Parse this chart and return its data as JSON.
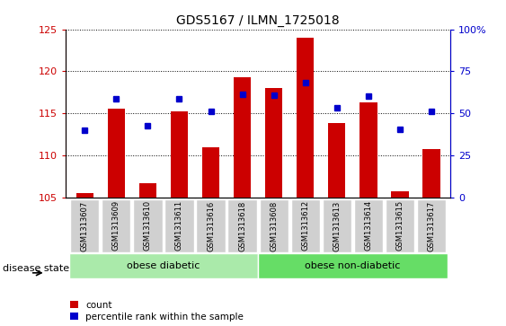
{
  "title": "GDS5167 / ILMN_1725018",
  "samples": [
    "GSM1313607",
    "GSM1313609",
    "GSM1313610",
    "GSM1313611",
    "GSM1313616",
    "GSM1313618",
    "GSM1313608",
    "GSM1313612",
    "GSM1313613",
    "GSM1313614",
    "GSM1313615",
    "GSM1313617"
  ],
  "count_values": [
    105.5,
    115.5,
    106.7,
    115.2,
    111.0,
    119.3,
    118.0,
    124.0,
    113.8,
    116.3,
    105.7,
    110.7
  ],
  "percentile_values": [
    113.0,
    116.7,
    113.5,
    116.7,
    115.2,
    117.3,
    117.2,
    118.7,
    115.7,
    117.0,
    113.1,
    115.2
  ],
  "y_min": 105,
  "y_max": 125,
  "y_ticks": [
    105,
    110,
    115,
    120,
    125
  ],
  "right_y_ticks": [
    0,
    25,
    50,
    75,
    100
  ],
  "right_y_tick_positions": [
    105,
    110,
    115,
    120,
    125
  ],
  "right_y_tick_labels": [
    "0",
    "25",
    "50",
    "75",
    "100%"
  ],
  "bar_color": "#cc0000",
  "percentile_color": "#0000cc",
  "bar_bottom": 105,
  "group1_label": "obese diabetic",
  "group2_label": "obese non-diabetic",
  "group1_count": 6,
  "group2_count": 6,
  "disease_state_label": "disease state",
  "legend_count_label": "count",
  "legend_percentile_label": "percentile rank within the sample",
  "tick_label_bg": "#d0d0d0",
  "group1_bg": "#aaeaaa",
  "group2_bg": "#66dd66"
}
